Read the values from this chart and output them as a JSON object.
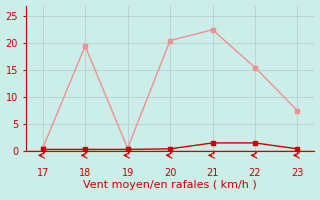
{
  "x": [
    17,
    18,
    19,
    20,
    21,
    22,
    23
  ],
  "y_rafales": [
    0.5,
    19.5,
    0.5,
    20.5,
    22.5,
    15.5,
    7.5
  ],
  "y_moyen": [
    0.3,
    0.3,
    0.3,
    0.4,
    1.5,
    1.5,
    0.4
  ],
  "color_rafales": "#f09090",
  "color_moyen": "#cc0000",
  "bg_color": "#cceee8",
  "xlabel": "Vent moyen/en rafales ( km/h )",
  "xlabel_color": "#cc0000",
  "tick_color": "#cc0000",
  "grid_color": "#b0c8c8",
  "ylim": [
    0,
    27
  ],
  "yticks": [
    0,
    5,
    10,
    15,
    20,
    25
  ],
  "xlim": [
    16.6,
    23.4
  ],
  "xticks": [
    17,
    18,
    19,
    20,
    21,
    22,
    23
  ],
  "markersize": 3,
  "linewidth": 1.0,
  "xlabel_fontsize": 8,
  "tick_fontsize": 7,
  "spine_color": "#cc0000",
  "hline_y": 0,
  "bottom_line_color": "#cc0000"
}
